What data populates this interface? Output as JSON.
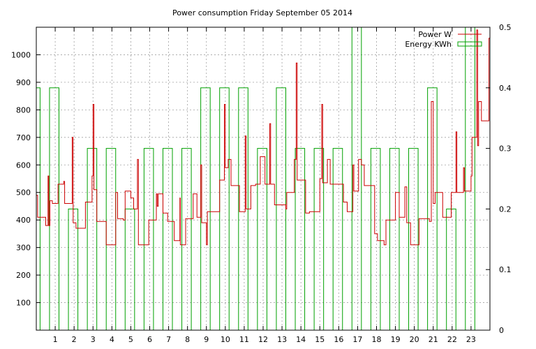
{
  "chart_data": {
    "type": "line",
    "title": "Power consumption Friday September 05 2014",
    "xlabel": "",
    "ylabel": "",
    "y2label": "",
    "grid": true,
    "legend_position": "top-right",
    "xlim": [
      0,
      24
    ],
    "ylim": [
      0,
      1100
    ],
    "y2lim": [
      0,
      0.5
    ],
    "x_ticks": [
      1,
      2,
      3,
      4,
      5,
      6,
      7,
      8,
      9,
      10,
      11,
      12,
      13,
      14,
      15,
      16,
      17,
      18,
      19,
      20,
      21,
      22,
      23
    ],
    "y_ticks": [
      100,
      200,
      300,
      400,
      500,
      600,
      700,
      800,
      900,
      1000
    ],
    "y2_ticks": [
      0,
      0.1,
      0.2,
      0.3,
      0.4,
      0.5
    ],
    "y2_tick_labels": [
      "0",
      "0.1",
      "0.2",
      "0.3",
      "0.4",
      "0.5"
    ],
    "colors": {
      "power": "#cc0000",
      "energy": "#00a000",
      "grid": "#a0a0a0"
    },
    "series": [
      {
        "name": "Power W",
        "axis": "y",
        "style": "step",
        "points": [
          [
            0,
            490
          ],
          [
            0.07,
            410
          ],
          [
            0.5,
            380
          ],
          [
            0.62,
            560
          ],
          [
            0.66,
            380
          ],
          [
            0.72,
            470
          ],
          [
            0.85,
            460
          ],
          [
            1.15,
            530
          ],
          [
            1.45,
            540
          ],
          [
            1.5,
            460
          ],
          [
            1.9,
            700
          ],
          [
            1.95,
            390
          ],
          [
            2.1,
            370
          ],
          [
            2.6,
            465
          ],
          [
            2.95,
            560
          ],
          [
            3.0,
            820
          ],
          [
            3.05,
            510
          ],
          [
            3.2,
            395
          ],
          [
            3.7,
            310
          ],
          [
            4.2,
            500
          ],
          [
            4.3,
            405
          ],
          [
            4.6,
            400
          ],
          [
            4.7,
            505
          ],
          [
            5.0,
            480
          ],
          [
            5.15,
            440
          ],
          [
            5.35,
            620
          ],
          [
            5.4,
            310
          ],
          [
            5.95,
            400
          ],
          [
            6.35,
            495
          ],
          [
            6.4,
            450
          ],
          [
            6.45,
            495
          ],
          [
            6.7,
            425
          ],
          [
            6.95,
            395
          ],
          [
            7.3,
            325
          ],
          [
            7.6,
            480
          ],
          [
            7.62,
            310
          ],
          [
            7.9,
            405
          ],
          [
            8.3,
            495
          ],
          [
            8.5,
            410
          ],
          [
            8.7,
            600
          ],
          [
            8.75,
            390
          ],
          [
            9.0,
            310
          ],
          [
            9.05,
            430
          ],
          [
            9.7,
            545
          ],
          [
            9.95,
            820
          ],
          [
            10.0,
            590
          ],
          [
            10.15,
            620
          ],
          [
            10.3,
            525
          ],
          [
            10.75,
            430
          ],
          [
            11.05,
            705
          ],
          [
            11.1,
            440
          ],
          [
            11.35,
            525
          ],
          [
            11.6,
            530
          ],
          [
            11.85,
            630
          ],
          [
            12.1,
            530
          ],
          [
            12.35,
            750
          ],
          [
            12.4,
            530
          ],
          [
            12.6,
            455
          ],
          [
            13.2,
            440
          ],
          [
            13.25,
            500
          ],
          [
            13.65,
            620
          ],
          [
            13.75,
            970
          ],
          [
            13.8,
            545
          ],
          [
            14.25,
            425
          ],
          [
            14.45,
            430
          ],
          [
            15.0,
            550
          ],
          [
            15.1,
            820
          ],
          [
            15.15,
            535
          ],
          [
            15.4,
            620
          ],
          [
            15.55,
            530
          ],
          [
            16.25,
            465
          ],
          [
            16.45,
            430
          ],
          [
            16.75,
            600
          ],
          [
            16.8,
            505
          ],
          [
            17.05,
            620
          ],
          [
            17.2,
            600
          ],
          [
            17.35,
            525
          ],
          [
            17.9,
            350
          ],
          [
            18.05,
            325
          ],
          [
            18.4,
            310
          ],
          [
            18.5,
            400
          ],
          [
            19.0,
            500
          ],
          [
            19.2,
            410
          ],
          [
            19.5,
            520
          ],
          [
            19.6,
            390
          ],
          [
            19.8,
            310
          ],
          [
            20.25,
            405
          ],
          [
            20.8,
            395
          ],
          [
            20.9,
            830
          ],
          [
            21.0,
            460
          ],
          [
            21.1,
            500
          ],
          [
            21.5,
            410
          ],
          [
            21.95,
            500
          ],
          [
            22.2,
            720
          ],
          [
            22.25,
            500
          ],
          [
            22.6,
            590
          ],
          [
            22.65,
            505
          ],
          [
            23.0,
            560
          ],
          [
            23.05,
            700
          ],
          [
            23.3,
            1090
          ],
          [
            23.35,
            670
          ],
          [
            23.4,
            830
          ],
          [
            23.55,
            760
          ],
          [
            23.95,
            1060
          ],
          [
            24.0,
            800
          ]
        ]
      },
      {
        "name": "Energy KWh",
        "axis": "y2",
        "style": "bars",
        "bars": [
          [
            0.0,
            0.2,
            0.4
          ],
          [
            0.7,
            1.2,
            0.4
          ],
          [
            1.7,
            2.2,
            0.2
          ],
          [
            2.7,
            3.2,
            0.3
          ],
          [
            3.7,
            4.2,
            0.3
          ],
          [
            4.7,
            5.2,
            0.2
          ],
          [
            5.7,
            6.2,
            0.3
          ],
          [
            6.7,
            7.2,
            0.3
          ],
          [
            7.7,
            8.2,
            0.3
          ],
          [
            8.7,
            9.2,
            0.4
          ],
          [
            9.7,
            10.2,
            0.4
          ],
          [
            10.7,
            11.2,
            0.4
          ],
          [
            11.7,
            12.2,
            0.3
          ],
          [
            12.7,
            13.2,
            0.4
          ],
          [
            13.7,
            14.2,
            0.3
          ],
          [
            14.7,
            15.2,
            0.3
          ],
          [
            15.7,
            16.2,
            0.3
          ],
          [
            16.7,
            17.2,
            0.5
          ],
          [
            17.7,
            18.2,
            0.3
          ],
          [
            18.7,
            19.2,
            0.3
          ],
          [
            19.7,
            20.2,
            0.3
          ],
          [
            20.7,
            21.2,
            0.4
          ],
          [
            21.7,
            22.2,
            0.2
          ],
          [
            22.7,
            23.2,
            0.5
          ]
        ]
      }
    ]
  }
}
